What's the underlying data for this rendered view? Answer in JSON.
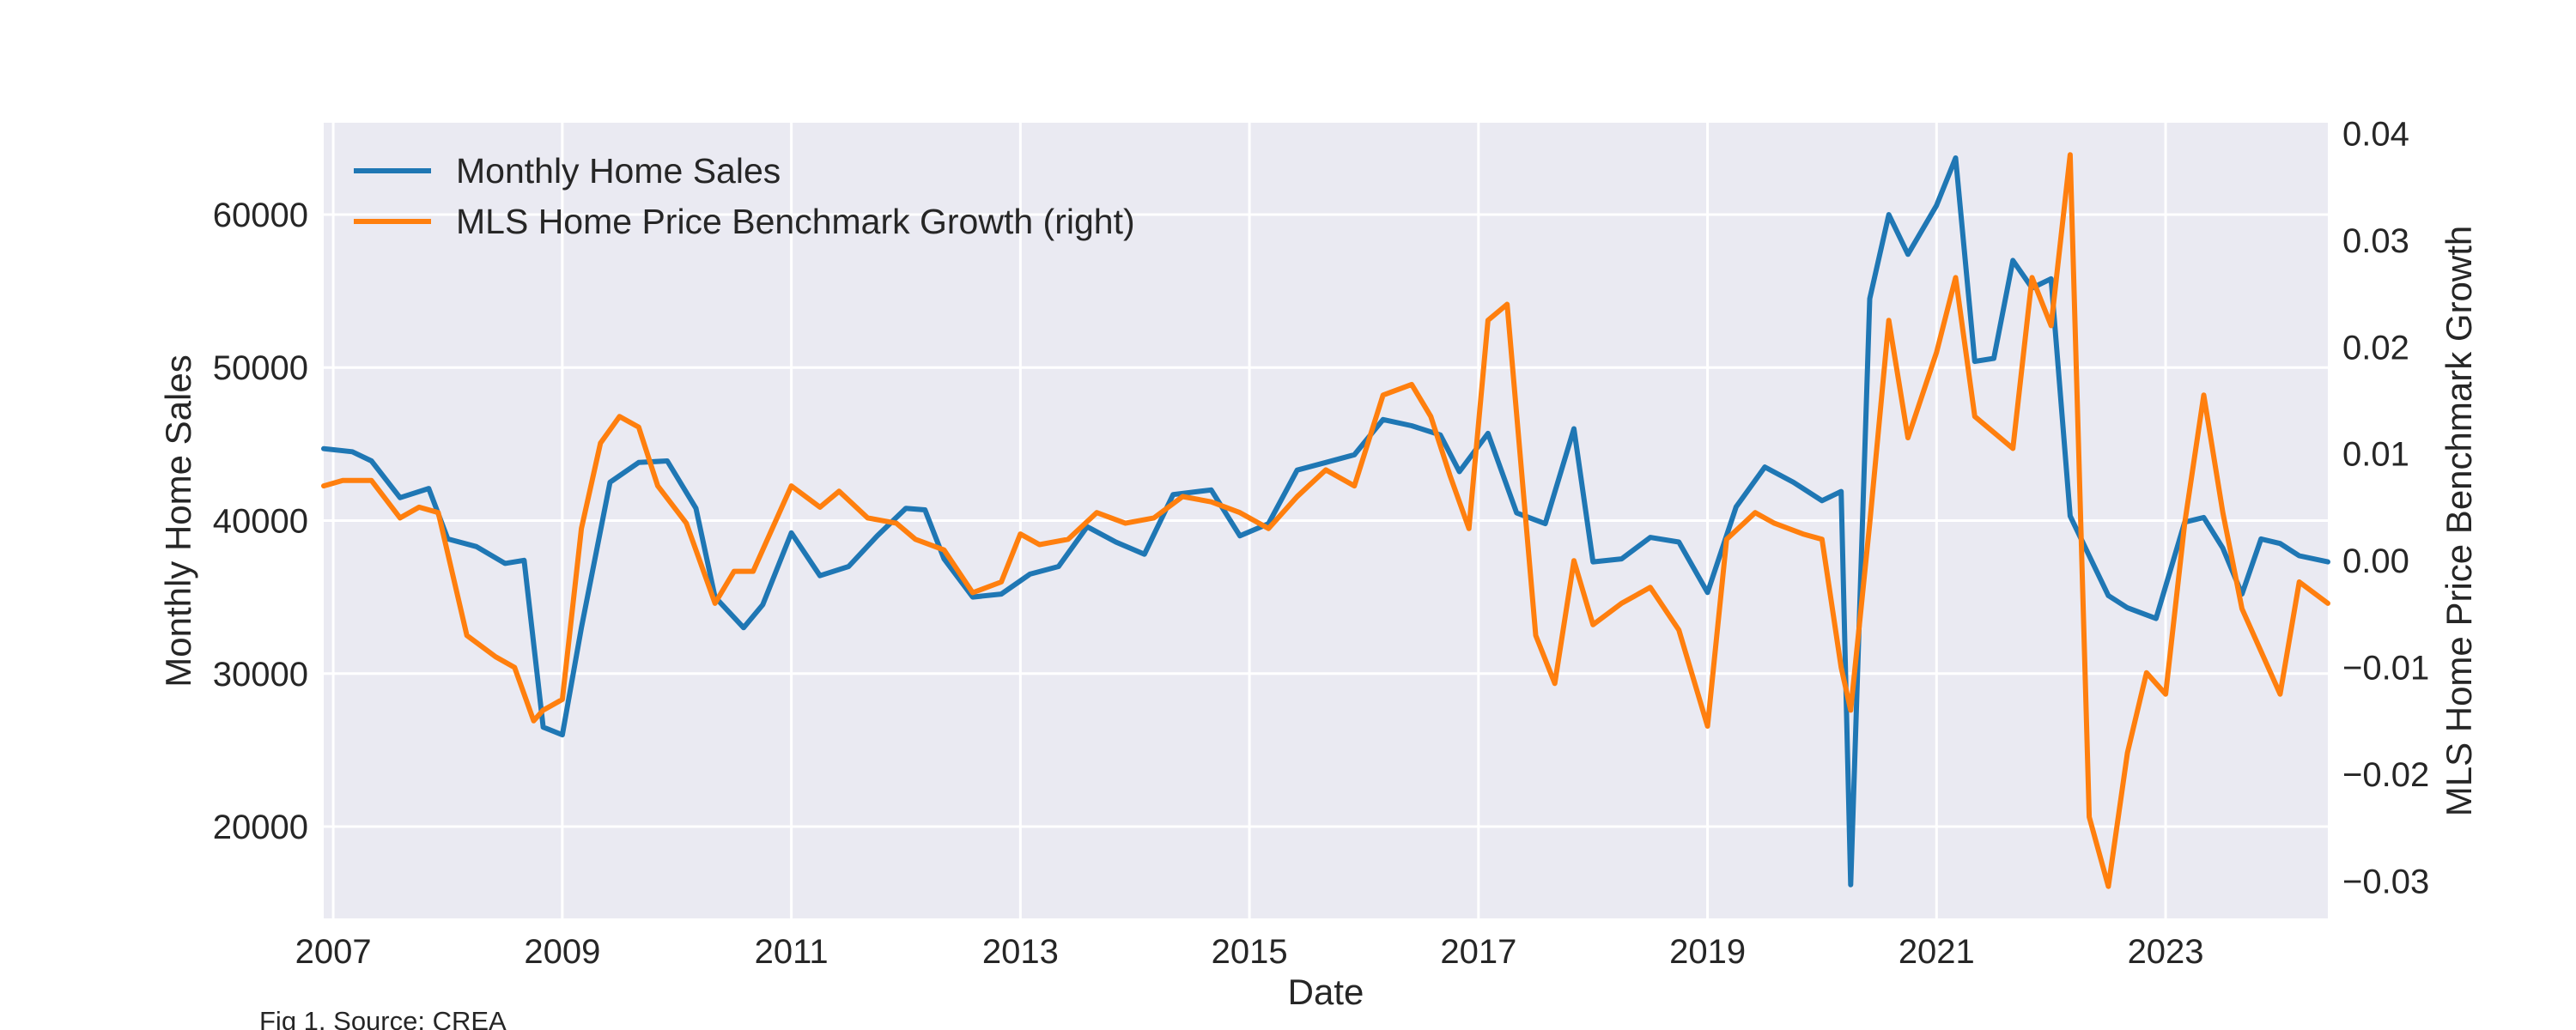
{
  "caption": "Fig 1. Source: CREA",
  "chart_data": {
    "type": "line",
    "xlabel": "Date",
    "ylabel_left": "Monthly Home Sales",
    "ylabel_right": "MLS Home Price Benchmark Growth",
    "x_range": [
      "2006-12",
      "2024-06"
    ],
    "x_ticks": [
      "2007",
      "2009",
      "2011",
      "2013",
      "2015",
      "2017",
      "2019",
      "2021",
      "2023"
    ],
    "ylim_left": [
      14000,
      66000
    ],
    "ylim_right": [
      -0.0335,
      0.041
    ],
    "yticks_left": [
      "20000",
      "30000",
      "40000",
      "50000",
      "60000"
    ],
    "yticks_right": [
      "0.04",
      "0.03",
      "0.02",
      "0.01",
      "0.00",
      "−0.01",
      "−0.02",
      "−0.03"
    ],
    "grid": true,
    "legend_position": "top-left",
    "colors": {
      "sales": "#1f77b4",
      "growth": "#ff7f0e",
      "plot_bg": "#eaeaf2",
      "grid": "#ffffff"
    },
    "series": [
      {
        "name": "Monthly Home Sales",
        "axis": "left",
        "x": [
          "2006-12",
          "2007-03",
          "2007-05",
          "2007-08",
          "2007-11",
          "2008-01",
          "2008-04",
          "2008-07",
          "2008-09",
          "2008-11",
          "2009-01",
          "2009-03",
          "2009-06",
          "2009-09",
          "2009-12",
          "2010-03",
          "2010-05",
          "2010-08",
          "2010-10",
          "2011-01",
          "2011-04",
          "2011-07",
          "2011-10",
          "2012-01",
          "2012-03",
          "2012-05",
          "2012-08",
          "2012-11",
          "2013-02",
          "2013-05",
          "2013-08",
          "2013-11",
          "2014-02",
          "2014-05",
          "2014-09",
          "2014-12",
          "2015-03",
          "2015-06",
          "2015-09",
          "2015-12",
          "2016-03",
          "2016-06",
          "2016-09",
          "2016-11",
          "2017-02",
          "2017-05",
          "2017-08",
          "2017-11",
          "2018-01",
          "2018-04",
          "2018-07",
          "2018-10",
          "2019-01",
          "2019-04",
          "2019-07",
          "2019-10",
          "2020-01",
          "2020-03",
          "2020-04",
          "2020-06",
          "2020-08",
          "2020-10",
          "2021-01",
          "2021-03",
          "2021-05",
          "2021-07",
          "2021-09",
          "2021-11",
          "2022-01",
          "2022-03",
          "2022-05",
          "2022-07",
          "2022-09",
          "2022-12",
          "2023-03",
          "2023-05",
          "2023-07",
          "2023-09",
          "2023-11",
          "2024-01",
          "2024-03",
          "2024-06"
        ],
        "values": [
          44700,
          44500,
          43900,
          41500,
          42100,
          38800,
          38300,
          37200,
          37400,
          26500,
          26000,
          33000,
          42500,
          43800,
          43900,
          40800,
          35000,
          33000,
          34500,
          39200,
          36400,
          37000,
          39000,
          40800,
          40700,
          37500,
          35000,
          35200,
          36500,
          37000,
          39600,
          38600,
          37800,
          41700,
          42000,
          39000,
          39800,
          43300,
          43800,
          44300,
          46600,
          46200,
          45600,
          43200,
          45700,
          40500,
          39800,
          46000,
          37300,
          37500,
          38900,
          38600,
          35300,
          40900,
          43500,
          42500,
          41300,
          41900,
          16200,
          54500,
          60000,
          57400,
          60600,
          63700,
          50400,
          50600,
          57000,
          55200,
          55800,
          40300,
          37700,
          35100,
          34300,
          33600,
          39900,
          40200,
          38200,
          35200,
          38800,
          38500,
          37700,
          37300
        ]
      },
      {
        "name": "MLS Home Price Benchmark Growth (right)",
        "axis": "right",
        "x": [
          "2006-12",
          "2007-02",
          "2007-05",
          "2007-08",
          "2007-10",
          "2007-12",
          "2008-03",
          "2008-06",
          "2008-08",
          "2008-10",
          "2008-11",
          "2009-01",
          "2009-03",
          "2009-05",
          "2009-07",
          "2009-09",
          "2009-11",
          "2010-02",
          "2010-05",
          "2010-07",
          "2010-09",
          "2011-01",
          "2011-04",
          "2011-06",
          "2011-09",
          "2011-12",
          "2012-02",
          "2012-05",
          "2012-08",
          "2012-11",
          "2013-01",
          "2013-03",
          "2013-06",
          "2013-09",
          "2013-12",
          "2014-03",
          "2014-06",
          "2014-09",
          "2014-12",
          "2015-03",
          "2015-06",
          "2015-09",
          "2015-12",
          "2016-03",
          "2016-06",
          "2016-08",
          "2016-10",
          "2016-12",
          "2017-02",
          "2017-04",
          "2017-07",
          "2017-09",
          "2017-11",
          "2018-01",
          "2018-04",
          "2018-07",
          "2018-10",
          "2019-01",
          "2019-03",
          "2019-06",
          "2019-08",
          "2019-11",
          "2020-01",
          "2020-03",
          "2020-04",
          "2020-06",
          "2020-08",
          "2020-10",
          "2021-01",
          "2021-03",
          "2021-05",
          "2021-07",
          "2021-09",
          "2021-11",
          "2022-01",
          "2022-03",
          "2022-05",
          "2022-07",
          "2022-09",
          "2022-11",
          "2023-01",
          "2023-03",
          "2023-05",
          "2023-07",
          "2023-09",
          "2023-11",
          "2024-01",
          "2024-03",
          "2024-06"
        ],
        "values": [
          0.007,
          0.0075,
          0.0075,
          0.004,
          0.005,
          0.0045,
          -0.007,
          -0.009,
          -0.01,
          -0.015,
          -0.014,
          -0.013,
          0.003,
          0.011,
          0.0135,
          0.0125,
          0.007,
          0.0035,
          -0.004,
          -0.001,
          -0.001,
          0.007,
          0.005,
          0.0065,
          0.004,
          0.0035,
          0.002,
          0.001,
          -0.003,
          -0.002,
          0.0025,
          0.0015,
          0.002,
          0.0045,
          0.0035,
          0.004,
          0.006,
          0.0055,
          0.0045,
          0.003,
          0.006,
          0.0085,
          0.007,
          0.0155,
          0.0165,
          0.0135,
          0.008,
          0.003,
          0.0225,
          0.024,
          -0.007,
          -0.0115,
          0.0,
          -0.006,
          -0.004,
          -0.0025,
          -0.0065,
          -0.0155,
          0.002,
          0.0045,
          0.0035,
          0.0025,
          0.002,
          -0.01,
          -0.014,
          0.0035,
          0.0225,
          0.0115,
          0.0195,
          0.0265,
          0.0135,
          0.012,
          0.0105,
          0.0265,
          0.022,
          0.038,
          -0.024,
          -0.0305,
          -0.018,
          -0.0105,
          -0.0125,
          0.0035,
          0.0155,
          0.0045,
          -0.0045,
          -0.0085,
          -0.0125,
          -0.002,
          -0.004
        ]
      }
    ]
  }
}
